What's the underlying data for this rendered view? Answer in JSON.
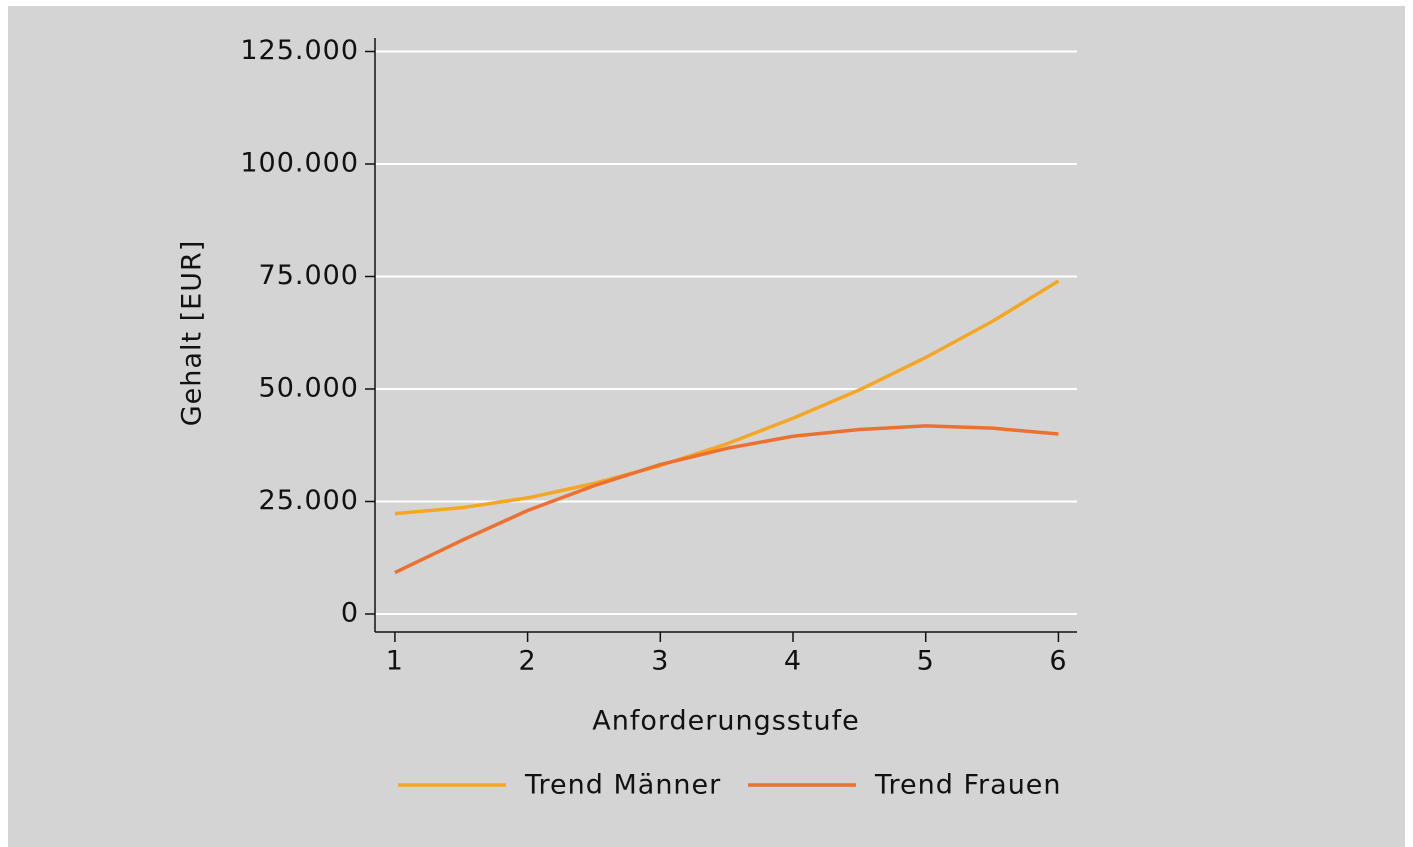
{
  "chart_data": {
    "type": "line",
    "xlabel": "Anforderungsstufe",
    "ylabel": "Gehalt [EUR]",
    "x": [
      1,
      1.5,
      2,
      2.5,
      3,
      3.5,
      4,
      4.5,
      5,
      5.5,
      6
    ],
    "series": [
      {
        "name": "Trend Männer",
        "color": "#f5a623",
        "values": [
          22300,
          23600,
          25800,
          29000,
          33000,
          37800,
          43500,
          49800,
          57000,
          65000,
          74000
        ]
      },
      {
        "name": "Trend Frauen",
        "color": "#ec7030",
        "values": [
          9200,
          16300,
          23000,
          28500,
          33200,
          36800,
          39500,
          41000,
          41800,
          41300,
          40000
        ]
      }
    ],
    "xlim": [
      0.85,
      6.14
    ],
    "xticks": [
      1,
      2,
      3,
      4,
      5,
      6
    ],
    "ylim": [
      -4000,
      128000
    ],
    "yticks": [
      0,
      {
        "value": 25000,
        "label": "25.000"
      },
      {
        "value": 50000,
        "label": "50.000"
      },
      {
        "value": 75000,
        "label": "75.000"
      },
      {
        "value": 100000,
        "label": "100.000"
      },
      {
        "value": 125000,
        "label": "125.000"
      }
    ],
    "grid": true,
    "legend": "bottom"
  }
}
